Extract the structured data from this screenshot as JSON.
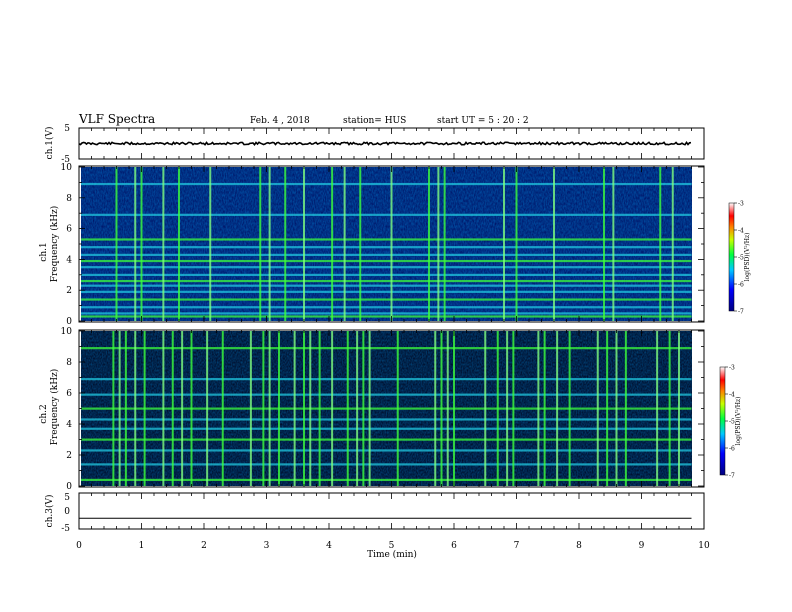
{
  "header": {
    "title": "VLF Spectra",
    "date": "Feb. 4  , 2018",
    "station": "station= HUS",
    "start": "start  UT =   5  : 20 : 2"
  },
  "chart_data": [
    {
      "type": "line",
      "panel": "ch1-waveform",
      "ylabel": "ch.1(V)",
      "ylim": [
        -5,
        5
      ],
      "yticks": [
        "5",
        "-5"
      ],
      "xlim": [
        0,
        10
      ],
      "series": [
        {
          "x": [
            0,
            9.8
          ],
          "values": [
            0,
            0
          ]
        }
      ]
    },
    {
      "type": "heatmap",
      "panel": "ch1-spectrogram",
      "ylabel": "ch.1\nFrequency (kHz)",
      "ylabel_lines": [
        "ch.1",
        "Frequency  (kHz)"
      ],
      "ylim": [
        0,
        10
      ],
      "yticks": [
        "0",
        "2",
        "4",
        "6",
        "8",
        "10"
      ],
      "xlim": [
        0,
        9.8
      ],
      "colorbar": {
        "label": "log(PSD)(V²/Hz)",
        "range": [
          -7,
          -3
        ],
        "ticks": [
          "-3",
          "-4",
          "-5",
          "-6",
          "-7"
        ]
      },
      "horizontal_lines_khz": [
        0.3,
        0.5,
        0.9,
        1.4,
        1.9,
        2.3,
        2.6,
        3.0,
        3.5,
        3.9,
        4.3,
        4.8,
        5.3,
        6.9,
        8.9
      ],
      "vertical_bursts_min": [
        0.6,
        0.9,
        1.0,
        1.35,
        1.6,
        2.1,
        2.9,
        3.05,
        3.3,
        3.6,
        4.05,
        4.25,
        4.5,
        5.0,
        5.6,
        5.75,
        5.85,
        6.8,
        7.0,
        7.6,
        8.4,
        8.55,
        9.3,
        9.5
      ]
    },
    {
      "type": "heatmap",
      "panel": "ch2-spectrogram",
      "ylabel": "ch.2\nFrequency (kHz)",
      "ylabel_lines": [
        "ch.2",
        "Frequency  (kHz)"
      ],
      "ylim": [
        0,
        10
      ],
      "yticks": [
        "0",
        "2",
        "4",
        "6",
        "8",
        "10"
      ],
      "xlim": [
        0,
        9.8
      ],
      "colorbar": {
        "label": "log(PSD)(V²/Hz)",
        "range": [
          -7,
          -3
        ],
        "ticks": [
          "-3",
          "-4",
          "-5",
          "-6",
          "-7"
        ]
      },
      "horizontal_lines_khz": [
        0.4,
        1.4,
        2.3,
        3.0,
        3.7,
        4.3,
        5.0,
        5.9,
        6.9,
        8.9
      ],
      "vertical_bursts_min": [
        0.55,
        0.65,
        0.75,
        0.9,
        1.05,
        1.35,
        1.5,
        1.65,
        1.8,
        2.05,
        2.3,
        2.75,
        2.95,
        3.05,
        3.2,
        3.45,
        3.6,
        3.7,
        3.85,
        4.05,
        4.3,
        4.45,
        4.55,
        4.65,
        5.1,
        5.7,
        5.8,
        5.9,
        6.0,
        6.5,
        6.7,
        6.85,
        6.95,
        7.35,
        7.45,
        7.65,
        7.85,
        8.3,
        8.45,
        8.6,
        8.75,
        9.25,
        9.45,
        9.6
      ]
    },
    {
      "type": "line",
      "panel": "ch3-waveform",
      "ylabel": "ch.3(V)",
      "ylim": [
        -5,
        5
      ],
      "yticks": [
        "5",
        "0",
        "-5"
      ],
      "xlim": [
        0,
        10
      ],
      "xlabel": "Time  (min)",
      "xticks": [
        "0",
        "1",
        "2",
        "3",
        "4",
        "5",
        "6",
        "7",
        "8",
        "9",
        "10"
      ],
      "series": [
        {
          "x": [
            0,
            9.8
          ],
          "values": [
            -2,
            -2
          ]
        }
      ]
    }
  ],
  "colors": {
    "background": "#000a6e",
    "accent_green": "#3cff3c",
    "accent_cyan": "#20c8e0",
    "trace": "#000000"
  }
}
